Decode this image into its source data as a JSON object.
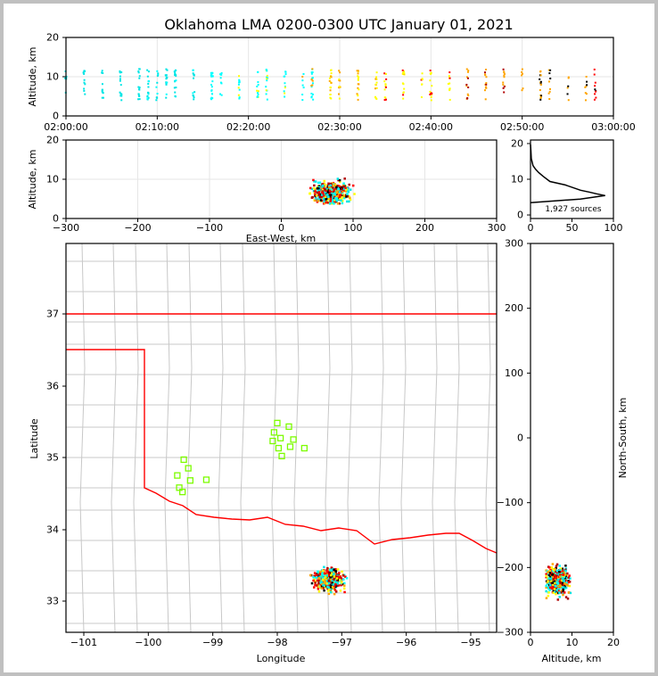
{
  "chart_data": [
    {
      "panel": "altitude-time",
      "type": "scatter",
      "title": "Oklahoma LMA 0200-0300 UTC January 01, 2021",
      "ylabel": "Altitude, km",
      "xlim_minutes": [
        0,
        60
      ],
      "ylim": [
        0,
        20
      ],
      "xticks": [
        "02:00:00",
        "02:10:00",
        "02:20:00",
        "02:30:00",
        "02:40:00",
        "02:50:00",
        "03:00:00"
      ],
      "yticks": [
        "0",
        "10",
        "20"
      ],
      "flash_minutes": [
        0,
        2,
        4,
        6,
        8,
        9,
        10,
        11,
        12,
        14,
        16,
        17,
        19,
        21,
        22,
        24,
        26,
        27,
        29,
        30,
        32,
        34,
        35,
        37,
        39,
        40,
        42,
        44,
        46,
        48,
        50,
        52,
        53,
        55,
        57,
        58
      ],
      "altitude_range_km": [
        4,
        12
      ]
    },
    {
      "panel": "altitude-eastwest",
      "type": "scatter",
      "xlabel": "East-West, km",
      "ylabel": "Altitude, km",
      "xlim": [
        -300,
        300
      ],
      "ylim": [
        0,
        20
      ],
      "xticks": [
        "−300",
        "−200",
        "−100",
        "0",
        "100",
        "200",
        "300"
      ],
      "yticks": [
        "0",
        "10",
        "20"
      ],
      "cluster": {
        "x_center": 70,
        "x_spread": 25,
        "alt_center": 6.5,
        "alt_spread": 2.5
      }
    },
    {
      "panel": "altitude-histogram",
      "type": "line",
      "annotation": "1,927 sources",
      "xlim": [
        0,
        100
      ],
      "ylim": [
        0,
        20
      ],
      "xticks": [
        "0",
        "50",
        "100"
      ],
      "yticks": [
        "0",
        "10",
        "20"
      ],
      "profile": [
        [
          0,
          3.5
        ],
        [
          60,
          4.5
        ],
        [
          90,
          5.5
        ],
        [
          80,
          6
        ],
        [
          70,
          6.5
        ],
        [
          60,
          7
        ],
        [
          40,
          8.5
        ],
        [
          25,
          9.5
        ],
        [
          15,
          11
        ],
        [
          10,
          12
        ],
        [
          6,
          13
        ],
        [
          3,
          14
        ],
        [
          1,
          16
        ],
        [
          0.5,
          18
        ],
        [
          0,
          20
        ]
      ]
    },
    {
      "panel": "plan-view-map",
      "type": "scatter",
      "xlabel": "Longitude",
      "ylabel": "Latitude",
      "xlim": [
        -101.28,
        -94.6
      ],
      "ylim": [
        32.57,
        37.98
      ],
      "xticks": [
        "−101",
        "−100",
        "−99",
        "−98",
        "−97",
        "−96",
        "−95"
      ],
      "yticks": [
        "33",
        "34",
        "35",
        "36",
        "37"
      ],
      "cluster": {
        "lon_center": -97.2,
        "lat_center": 33.3,
        "lon_spread": 0.25,
        "lat_spread": 0.17
      },
      "stations": [
        [
          -98.0,
          35.48
        ],
        [
          -97.82,
          35.43
        ],
        [
          -98.05,
          35.35
        ],
        [
          -97.95,
          35.27
        ],
        [
          -98.07,
          35.23
        ],
        [
          -97.75,
          35.25
        ],
        [
          -97.98,
          35.13
        ],
        [
          -97.8,
          35.15
        ],
        [
          -97.58,
          35.13
        ],
        [
          -97.93,
          35.02
        ],
        [
          -99.45,
          34.97
        ],
        [
          -99.38,
          34.85
        ],
        [
          -99.55,
          34.75
        ],
        [
          -99.35,
          34.68
        ],
        [
          -99.1,
          34.69
        ],
        [
          -99.52,
          34.58
        ],
        [
          -99.47,
          34.52
        ]
      ]
    },
    {
      "panel": "northsouth-altitude",
      "type": "scatter",
      "xlabel": "Altitude, km",
      "ylabel": "North-South, km",
      "xlim": [
        0,
        20
      ],
      "ylim": [
        -300,
        300
      ],
      "xticks": [
        "0",
        "10",
        "20"
      ],
      "yticks": [
        "−300",
        "−200",
        "−100",
        "0",
        "100",
        "200",
        "300"
      ],
      "cluster": {
        "ns_center": -220,
        "ns_spread": 20,
        "alt_center": 6.5,
        "alt_spread": 2.5
      }
    }
  ],
  "colors": [
    "#00e5e5",
    "#00ffff",
    "#ffff00",
    "#ffa500",
    "#ff0000",
    "#b00000",
    "#000000"
  ],
  "station_color": "#7cfc00",
  "border_color": "#ff0000"
}
